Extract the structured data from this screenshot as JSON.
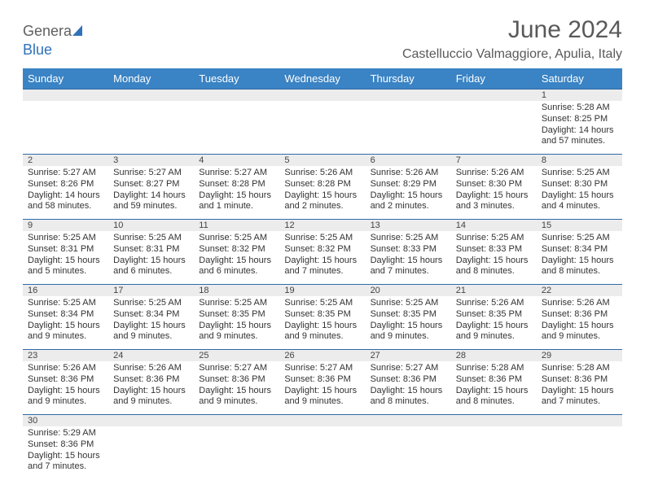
{
  "brand": {
    "part1": "Genera",
    "part2": "Blue",
    "sail_color": "#2f72b9"
  },
  "title": "June 2024",
  "location": "Castelluccio Valmaggiore, Apulia, Italy",
  "day_headers": [
    "Sunday",
    "Monday",
    "Tuesday",
    "Wednesday",
    "Thursday",
    "Friday",
    "Saturday"
  ],
  "colors": {
    "header_bg": "#3a83c4",
    "header_text": "#ffffff",
    "rule": "#2f6aa8",
    "daynum_bg": "#ececec",
    "title_color": "#595959",
    "text_color": "#333333"
  },
  "weeks": [
    [
      null,
      null,
      null,
      null,
      null,
      null,
      {
        "n": "1",
        "sunrise": "Sunrise: 5:28 AM",
        "sunset": "Sunset: 8:25 PM",
        "daylight": "Daylight: 14 hours and 57 minutes."
      }
    ],
    [
      {
        "n": "2",
        "sunrise": "Sunrise: 5:27 AM",
        "sunset": "Sunset: 8:26 PM",
        "daylight": "Daylight: 14 hours and 58 minutes."
      },
      {
        "n": "3",
        "sunrise": "Sunrise: 5:27 AM",
        "sunset": "Sunset: 8:27 PM",
        "daylight": "Daylight: 14 hours and 59 minutes."
      },
      {
        "n": "4",
        "sunrise": "Sunrise: 5:27 AM",
        "sunset": "Sunset: 8:28 PM",
        "daylight": "Daylight: 15 hours and 1 minute."
      },
      {
        "n": "5",
        "sunrise": "Sunrise: 5:26 AM",
        "sunset": "Sunset: 8:28 PM",
        "daylight": "Daylight: 15 hours and 2 minutes."
      },
      {
        "n": "6",
        "sunrise": "Sunrise: 5:26 AM",
        "sunset": "Sunset: 8:29 PM",
        "daylight": "Daylight: 15 hours and 2 minutes."
      },
      {
        "n": "7",
        "sunrise": "Sunrise: 5:26 AM",
        "sunset": "Sunset: 8:30 PM",
        "daylight": "Daylight: 15 hours and 3 minutes."
      },
      {
        "n": "8",
        "sunrise": "Sunrise: 5:25 AM",
        "sunset": "Sunset: 8:30 PM",
        "daylight": "Daylight: 15 hours and 4 minutes."
      }
    ],
    [
      {
        "n": "9",
        "sunrise": "Sunrise: 5:25 AM",
        "sunset": "Sunset: 8:31 PM",
        "daylight": "Daylight: 15 hours and 5 minutes."
      },
      {
        "n": "10",
        "sunrise": "Sunrise: 5:25 AM",
        "sunset": "Sunset: 8:31 PM",
        "daylight": "Daylight: 15 hours and 6 minutes."
      },
      {
        "n": "11",
        "sunrise": "Sunrise: 5:25 AM",
        "sunset": "Sunset: 8:32 PM",
        "daylight": "Daylight: 15 hours and 6 minutes."
      },
      {
        "n": "12",
        "sunrise": "Sunrise: 5:25 AM",
        "sunset": "Sunset: 8:32 PM",
        "daylight": "Daylight: 15 hours and 7 minutes."
      },
      {
        "n": "13",
        "sunrise": "Sunrise: 5:25 AM",
        "sunset": "Sunset: 8:33 PM",
        "daylight": "Daylight: 15 hours and 7 minutes."
      },
      {
        "n": "14",
        "sunrise": "Sunrise: 5:25 AM",
        "sunset": "Sunset: 8:33 PM",
        "daylight": "Daylight: 15 hours and 8 minutes."
      },
      {
        "n": "15",
        "sunrise": "Sunrise: 5:25 AM",
        "sunset": "Sunset: 8:34 PM",
        "daylight": "Daylight: 15 hours and 8 minutes."
      }
    ],
    [
      {
        "n": "16",
        "sunrise": "Sunrise: 5:25 AM",
        "sunset": "Sunset: 8:34 PM",
        "daylight": "Daylight: 15 hours and 9 minutes."
      },
      {
        "n": "17",
        "sunrise": "Sunrise: 5:25 AM",
        "sunset": "Sunset: 8:34 PM",
        "daylight": "Daylight: 15 hours and 9 minutes."
      },
      {
        "n": "18",
        "sunrise": "Sunrise: 5:25 AM",
        "sunset": "Sunset: 8:35 PM",
        "daylight": "Daylight: 15 hours and 9 minutes."
      },
      {
        "n": "19",
        "sunrise": "Sunrise: 5:25 AM",
        "sunset": "Sunset: 8:35 PM",
        "daylight": "Daylight: 15 hours and 9 minutes."
      },
      {
        "n": "20",
        "sunrise": "Sunrise: 5:25 AM",
        "sunset": "Sunset: 8:35 PM",
        "daylight": "Daylight: 15 hours and 9 minutes."
      },
      {
        "n": "21",
        "sunrise": "Sunrise: 5:26 AM",
        "sunset": "Sunset: 8:35 PM",
        "daylight": "Daylight: 15 hours and 9 minutes."
      },
      {
        "n": "22",
        "sunrise": "Sunrise: 5:26 AM",
        "sunset": "Sunset: 8:36 PM",
        "daylight": "Daylight: 15 hours and 9 minutes."
      }
    ],
    [
      {
        "n": "23",
        "sunrise": "Sunrise: 5:26 AM",
        "sunset": "Sunset: 8:36 PM",
        "daylight": "Daylight: 15 hours and 9 minutes."
      },
      {
        "n": "24",
        "sunrise": "Sunrise: 5:26 AM",
        "sunset": "Sunset: 8:36 PM",
        "daylight": "Daylight: 15 hours and 9 minutes."
      },
      {
        "n": "25",
        "sunrise": "Sunrise: 5:27 AM",
        "sunset": "Sunset: 8:36 PM",
        "daylight": "Daylight: 15 hours and 9 minutes."
      },
      {
        "n": "26",
        "sunrise": "Sunrise: 5:27 AM",
        "sunset": "Sunset: 8:36 PM",
        "daylight": "Daylight: 15 hours and 9 minutes."
      },
      {
        "n": "27",
        "sunrise": "Sunrise: 5:27 AM",
        "sunset": "Sunset: 8:36 PM",
        "daylight": "Daylight: 15 hours and 8 minutes."
      },
      {
        "n": "28",
        "sunrise": "Sunrise: 5:28 AM",
        "sunset": "Sunset: 8:36 PM",
        "daylight": "Daylight: 15 hours and 8 minutes."
      },
      {
        "n": "29",
        "sunrise": "Sunrise: 5:28 AM",
        "sunset": "Sunset: 8:36 PM",
        "daylight": "Daylight: 15 hours and 7 minutes."
      }
    ],
    [
      {
        "n": "30",
        "sunrise": "Sunrise: 5:29 AM",
        "sunset": "Sunset: 8:36 PM",
        "daylight": "Daylight: 15 hours and 7 minutes."
      },
      null,
      null,
      null,
      null,
      null,
      null
    ]
  ]
}
